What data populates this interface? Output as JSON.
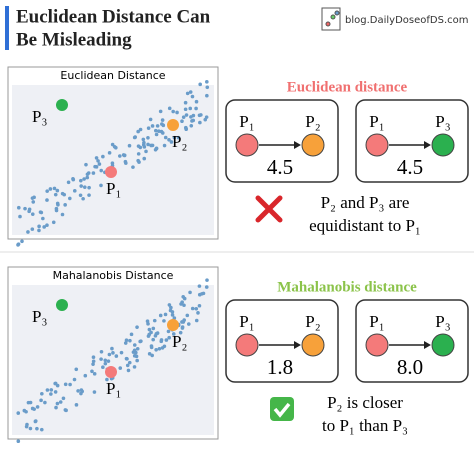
{
  "header": {
    "title_lines": [
      "Euclidean Distance Can",
      "Be Misleading"
    ],
    "logo": "blog.DailyDoseofDS.com"
  },
  "panels": [
    {
      "plot_title": "Euclidean Distance",
      "points": [
        "P₁",
        "P₂",
        "P₃"
      ],
      "heading": "Euclidean distance",
      "comparisons": [
        {
          "from": "P₁",
          "to": "P₂",
          "distance": "4.5"
        },
        {
          "from": "P₁",
          "to": "P₃",
          "distance": "4.5"
        }
      ],
      "conclusion_lines": [
        "P₂ and P₃ are",
        "equidistant to P₁"
      ]
    },
    {
      "plot_title": "Mahalanobis Distance",
      "points": [
        "P₁",
        "P₂",
        "P₃"
      ],
      "heading": "Mahalanobis distance",
      "comparisons": [
        {
          "from": "P₁",
          "to": "P₂",
          "distance": "1.8"
        },
        {
          "from": "P₁",
          "to": "P₃",
          "distance": "8.0"
        }
      ],
      "conclusion_lines": [
        "P₂ is closer",
        "to P₁ than P₃"
      ]
    }
  ]
}
